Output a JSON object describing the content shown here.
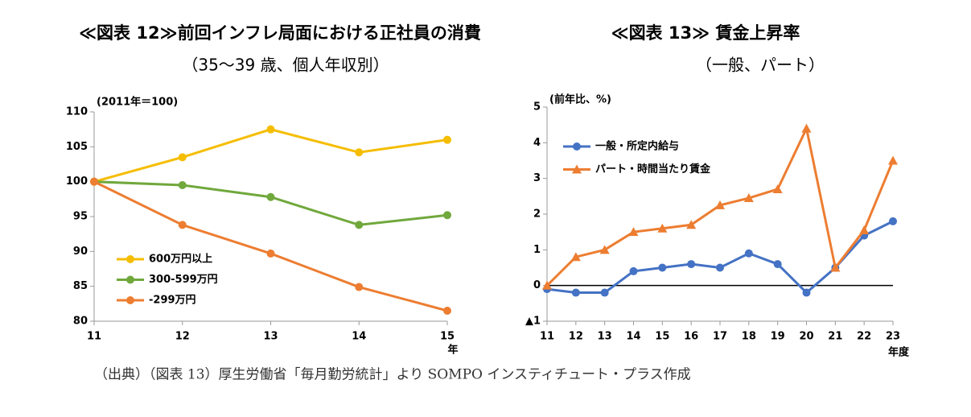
{
  "chart_data": [
    {
      "type": "line",
      "title": "≪図表 12≫前回インフレ局面における正社員の消費",
      "subtitle": "（35～39 歳、個人年収別）",
      "y_unit_label": "(2011年＝100)",
      "x_unit_label": "年",
      "categories": [
        "11",
        "12",
        "13",
        "14",
        "15"
      ],
      "ylim": [
        80,
        110
      ],
      "yticks": [
        80,
        85,
        90,
        95,
        100,
        105,
        110
      ],
      "series": [
        {
          "name": "600万円以上",
          "color": "#f5bd00",
          "marker": "circle",
          "values": [
            100,
            103.5,
            107.5,
            104.2,
            106
          ]
        },
        {
          "name": "300-599万円",
          "color": "#70a83c",
          "marker": "circle",
          "values": [
            100,
            99.5,
            97.8,
            93.8,
            95.2
          ]
        },
        {
          "name": "-299万円",
          "color": "#ed7d31",
          "marker": "circle",
          "values": [
            100,
            93.8,
            89.7,
            84.9,
            81.5
          ]
        }
      ]
    },
    {
      "type": "line",
      "title": "≪図表 13≫ 賃金上昇率",
      "subtitle": "（一般、パート）",
      "y_unit_label": "(前年比、%)",
      "x_unit_label": "年度",
      "categories": [
        "11",
        "12",
        "13",
        "14",
        "15",
        "16",
        "17",
        "18",
        "19",
        "20",
        "21",
        "22",
        "23"
      ],
      "ylim": [
        -1,
        5
      ],
      "yticks": [
        {
          "value": -1,
          "label": "▲1"
        },
        0,
        1,
        2,
        3,
        4,
        5
      ],
      "zero_line": true,
      "series": [
        {
          "name": "一般・所定内給与",
          "color": "#4472c4",
          "marker": "circle",
          "values": [
            -0.1,
            -0.2,
            -0.2,
            0.4,
            0.5,
            0.6,
            0.5,
            0.9,
            0.6,
            -0.2,
            0.5,
            1.4,
            1.8
          ]
        },
        {
          "name": "パート・時間当たり賃金",
          "color": "#ed7d31",
          "marker": "triangle",
          "values": [
            0,
            0.8,
            1.0,
            1.5,
            1.6,
            1.7,
            2.25,
            2.45,
            2.7,
            4.4,
            0.5,
            1.55,
            3.5
          ]
        }
      ]
    }
  ],
  "footer": "（出典）（図表 13）厚生労働省「毎月勤労統計」より SOMPO インスティチュート・プラス作成"
}
